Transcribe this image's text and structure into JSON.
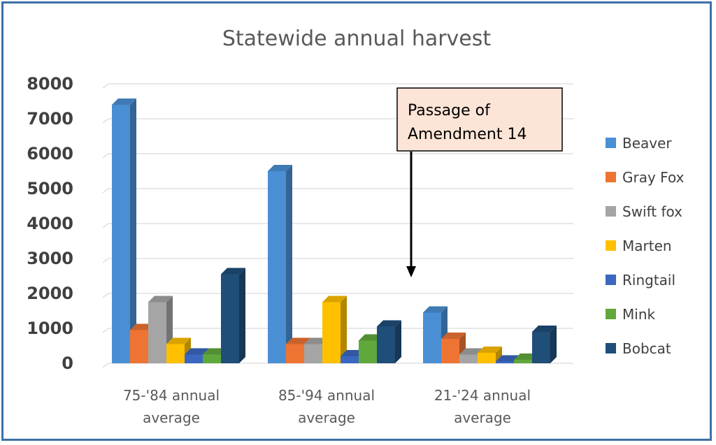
{
  "chart_data": {
    "type": "bar",
    "title": "Statewide annual harvest",
    "xlabel": "",
    "ylabel": "",
    "ylim": [
      0,
      8000
    ],
    "yticks": [
      0,
      1000,
      2000,
      3000,
      4000,
      5000,
      6000,
      7000,
      8000
    ],
    "categories": [
      [
        "75-'84 annual",
        "average"
      ],
      [
        "85-'94 annual",
        "average"
      ],
      [
        "21-'24 annual",
        "average"
      ]
    ],
    "series": [
      {
        "name": "Beaver",
        "color": "#4a8fd4",
        "values": [
          7400,
          5500,
          1450
        ]
      },
      {
        "name": "Gray Fox",
        "color": "#ee7433",
        "values": [
          950,
          550,
          700
        ]
      },
      {
        "name": "Swift fox",
        "color": "#a5a5a5",
        "values": [
          1750,
          550,
          250
        ]
      },
      {
        "name": "Marten",
        "color": "#ffc000",
        "values": [
          550,
          1750,
          300
        ]
      },
      {
        "name": "Ringtail",
        "color": "#3b67c0",
        "values": [
          250,
          200,
          50
        ]
      },
      {
        "name": "Mink",
        "color": "#60a83c",
        "values": [
          250,
          650,
          100
        ]
      },
      {
        "name": "Bobcat",
        "color": "#1f4e79",
        "values": [
          2550,
          1050,
          900
        ]
      }
    ],
    "legend_position": "right",
    "grid": true,
    "annotation": {
      "lines": [
        "Passage of",
        "Amendment 14"
      ],
      "arrow": "down",
      "fill": "#fce4d6"
    }
  }
}
